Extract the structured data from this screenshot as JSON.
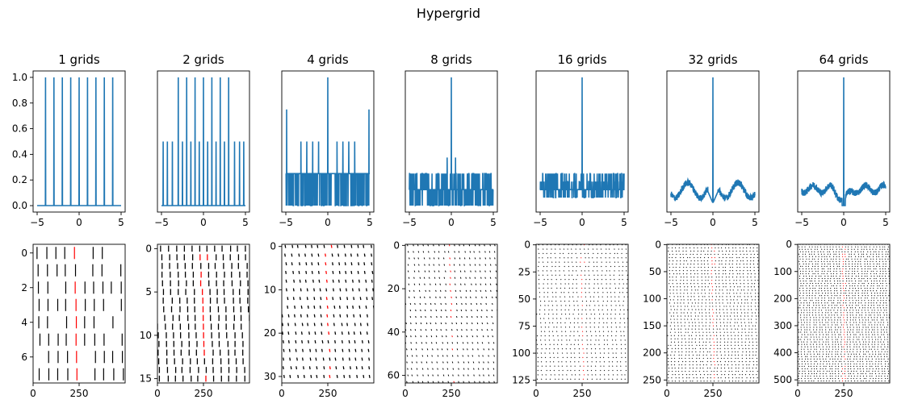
{
  "title": "Hypergrid",
  "colors": {
    "line": "#1f77b4",
    "stripe": "#000000",
    "highlight": "#ff0000",
    "axis": "#000000"
  },
  "chart_data": [
    {
      "type": "line",
      "title": "1 grids",
      "x_range": [
        -5,
        5
      ],
      "xticks": [
        -5,
        0,
        5
      ],
      "ylim": [
        -0.05,
        1.05
      ],
      "yticks": [
        0.0,
        0.2,
        0.4,
        0.6,
        0.8,
        1.0
      ],
      "ytick_labels": [
        "0.0",
        "0.2",
        "0.4",
        "0.6",
        "0.8",
        "1.0"
      ],
      "peaks": [
        {
          "x": -4,
          "value": 1.0
        },
        {
          "x": -3,
          "value": 1.0
        },
        {
          "x": -2,
          "value": 1.0
        },
        {
          "x": -1,
          "value": 1.0
        },
        {
          "x": 0,
          "value": 1.0
        },
        {
          "x": 1,
          "value": 1.0
        },
        {
          "x": 2,
          "value": 1.0
        },
        {
          "x": 3,
          "value": 1.0
        },
        {
          "x": 4,
          "value": 1.0
        }
      ],
      "baseline": 0.0
    },
    {
      "type": "line",
      "title": "2 grids",
      "x_range": [
        -5,
        5
      ],
      "xticks": [
        -5,
        0,
        5
      ],
      "ylim": [
        -0.05,
        1.05
      ],
      "peaks": [
        {
          "x": -3,
          "value": 1.0
        },
        {
          "x": -2,
          "value": 1.0
        },
        {
          "x": -1,
          "value": 1.0
        },
        {
          "x": 0,
          "value": 1.0
        },
        {
          "x": 1,
          "value": 1.0
        },
        {
          "x": 2,
          "value": 1.0
        },
        {
          "x": 3,
          "value": 1.0
        },
        {
          "x": -4.8,
          "value": 0.5
        },
        {
          "x": -4.3,
          "value": 0.5
        },
        {
          "x": -3.7,
          "value": 0.5
        },
        {
          "x": -2.5,
          "value": 0.5
        },
        {
          "x": -1.5,
          "value": 0.5
        },
        {
          "x": -0.5,
          "value": 0.5
        },
        {
          "x": 0.5,
          "value": 0.5
        },
        {
          "x": 1.5,
          "value": 0.5
        },
        {
          "x": 2.5,
          "value": 0.5
        },
        {
          "x": 3.7,
          "value": 0.5
        },
        {
          "x": 4.3,
          "value": 0.5
        },
        {
          "x": 4.8,
          "value": 0.5
        }
      ],
      "baseline": 0.0
    },
    {
      "type": "line",
      "title": "4 grids",
      "x_range": [
        -5,
        5
      ],
      "xticks": [
        -5,
        0,
        5
      ],
      "ylim": [
        -0.05,
        1.05
      ],
      "peaks": [
        {
          "x": -4.9,
          "value": 0.75
        },
        {
          "x": 0,
          "value": 1.0
        },
        {
          "x": 4.9,
          "value": 0.75
        },
        {
          "x": -3.2,
          "value": 0.5
        },
        {
          "x": -2.5,
          "value": 0.5
        },
        {
          "x": -1.8,
          "value": 0.5
        },
        {
          "x": -1.1,
          "value": 0.5
        },
        {
          "x": 1.1,
          "value": 0.5
        },
        {
          "x": 1.8,
          "value": 0.5
        },
        {
          "x": 2.5,
          "value": 0.5
        },
        {
          "x": 3.2,
          "value": 0.5
        }
      ],
      "noise_levels": [
        0.0,
        0.25
      ],
      "baseline": 0.25
    },
    {
      "type": "line",
      "title": "8 grids",
      "x_range": [
        -5,
        5
      ],
      "xticks": [
        -5,
        0,
        5
      ],
      "ylim": [
        -0.05,
        1.05
      ],
      "peaks": [
        {
          "x": 0,
          "value": 1.0
        },
        {
          "x": -0.5,
          "value": 0.375
        },
        {
          "x": 0.5,
          "value": 0.375
        }
      ],
      "noise_levels": [
        0.0,
        0.125,
        0.25
      ],
      "baseline": 0.125
    },
    {
      "type": "line",
      "title": "16 grids",
      "x_range": [
        -5,
        5
      ],
      "xticks": [
        -5,
        0,
        5
      ],
      "ylim": [
        -0.05,
        1.05
      ],
      "peaks": [
        {
          "x": 0,
          "value": 1.0
        }
      ],
      "noise_levels": [
        0.0625,
        0.125,
        0.1875,
        0.25
      ],
      "baseline": 0.125
    },
    {
      "type": "line",
      "title": "32 grids",
      "x_range": [
        -5,
        5
      ],
      "xticks": [
        -5,
        0,
        5
      ],
      "ylim": [
        -0.05,
        1.05
      ],
      "peaks": [
        {
          "x": 0,
          "value": 1.0
        }
      ],
      "profile": "wavy",
      "baseline": 0.12
    },
    {
      "type": "line",
      "title": "64 grids",
      "x_range": [
        -5,
        5
      ],
      "xticks": [
        -5,
        0,
        5
      ],
      "ylim": [
        -0.05,
        1.05
      ],
      "peaks": [
        {
          "x": 0,
          "value": 1.0
        }
      ],
      "profile": "v-dip",
      "baseline": 0.1
    },
    {
      "type": "heatmap",
      "rows": 8,
      "cols": 500,
      "xticks": [
        0,
        250
      ],
      "yticks": [
        0,
        2,
        4,
        6
      ],
      "ylim": [
        7.5,
        -0.5
      ]
    },
    {
      "type": "heatmap",
      "rows": 16,
      "cols": 500,
      "xticks": [
        0,
        250
      ],
      "yticks": [
        0,
        5,
        10,
        15
      ],
      "ylim": [
        15.5,
        -0.5
      ]
    },
    {
      "type": "heatmap",
      "rows": 32,
      "cols": 500,
      "xticks": [
        0,
        250
      ],
      "yticks": [
        0,
        10,
        20,
        30
      ],
      "ylim": [
        31.5,
        -0.5
      ]
    },
    {
      "type": "heatmap",
      "rows": 64,
      "cols": 500,
      "xticks": [
        0,
        250
      ],
      "yticks": [
        0,
        20,
        40,
        60
      ],
      "ylim": [
        63.5,
        -0.5
      ]
    },
    {
      "type": "heatmap",
      "rows": 128,
      "cols": 500,
      "xticks": [
        0,
        250
      ],
      "yticks": [
        0,
        25,
        50,
        75,
        100,
        125
      ],
      "ylim": [
        127.5,
        -0.5
      ]
    },
    {
      "type": "heatmap",
      "rows": 256,
      "cols": 500,
      "xticks": [
        0,
        250
      ],
      "yticks": [
        0,
        50,
        100,
        150,
        200,
        250
      ],
      "ylim": [
        255.5,
        -0.5
      ]
    },
    {
      "type": "heatmap",
      "rows": 512,
      "cols": 500,
      "xticks": [
        0,
        250
      ],
      "yticks": [
        0,
        100,
        200,
        300,
        400,
        500
      ],
      "ylim": [
        511.5,
        -0.5
      ]
    }
  ]
}
